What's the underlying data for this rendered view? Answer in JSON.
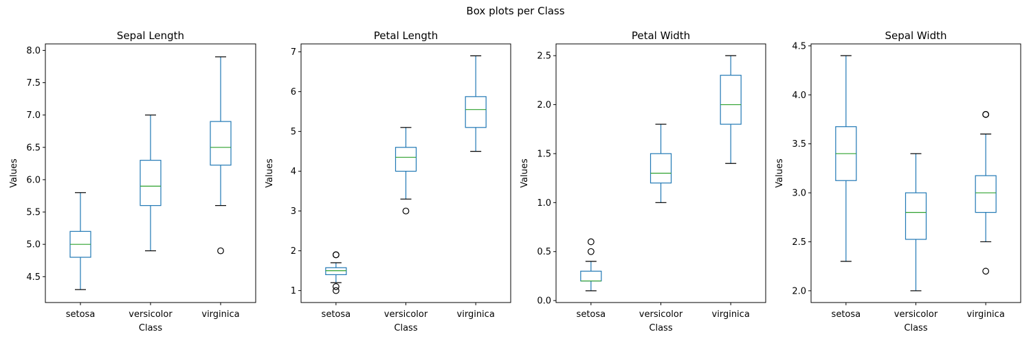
{
  "figure": {
    "suptitle": "Box plots per Class"
  },
  "colors": {
    "box": "#1f77b4",
    "median": "#2ca02c",
    "axis": "#000000",
    "outlier": "#000000"
  },
  "chart_data": [
    {
      "type": "box",
      "title": "Sepal Length",
      "xlabel": "Class",
      "ylabel": "Values",
      "categories": [
        "setosa",
        "versicolor",
        "virginica"
      ],
      "ylim": [
        4.1,
        8.1
      ],
      "yticks": [
        4.5,
        5.0,
        5.5,
        6.0,
        6.5,
        7.0,
        7.5,
        8.0
      ],
      "ytick_labels": [
        "4.5",
        "5.0",
        "5.5",
        "6.0",
        "6.5",
        "7.0",
        "7.5",
        "8.0"
      ],
      "boxes": [
        {
          "whisker_low": 4.3,
          "q1": 4.8,
          "median": 5.0,
          "q3": 5.2,
          "whisker_high": 5.8,
          "outliers": []
        },
        {
          "whisker_low": 4.9,
          "q1": 5.6,
          "median": 5.9,
          "q3": 6.3,
          "whisker_high": 7.0,
          "outliers": []
        },
        {
          "whisker_low": 5.6,
          "q1": 6.225,
          "median": 6.5,
          "q3": 6.9,
          "whisker_high": 7.9,
          "outliers": [
            4.9
          ]
        }
      ]
    },
    {
      "type": "box",
      "title": "Petal Length",
      "xlabel": "Class",
      "ylabel": "Values",
      "categories": [
        "setosa",
        "versicolor",
        "virginica"
      ],
      "ylim": [
        0.7,
        7.2
      ],
      "yticks": [
        1,
        2,
        3,
        4,
        5,
        6,
        7
      ],
      "ytick_labels": [
        "1",
        "2",
        "3",
        "4",
        "5",
        "6",
        "7"
      ],
      "boxes": [
        {
          "whisker_low": 1.2,
          "q1": 1.4,
          "median": 1.5,
          "q3": 1.575,
          "whisker_high": 1.7,
          "outliers": [
            1.0,
            1.1,
            1.9,
            1.9
          ]
        },
        {
          "whisker_low": 3.3,
          "q1": 4.0,
          "median": 4.35,
          "q3": 4.6,
          "whisker_high": 5.1,
          "outliers": [
            3.0
          ]
        },
        {
          "whisker_low": 4.5,
          "q1": 5.1,
          "median": 5.55,
          "q3": 5.875,
          "whisker_high": 6.9,
          "outliers": []
        }
      ]
    },
    {
      "type": "box",
      "title": "Petal Width",
      "xlabel": "Class",
      "ylabel": "Values",
      "categories": [
        "setosa",
        "versicolor",
        "virginica"
      ],
      "ylim": [
        -0.02,
        2.62
      ],
      "yticks": [
        0.0,
        0.5,
        1.0,
        1.5,
        2.0,
        2.5
      ],
      "ytick_labels": [
        "0.0",
        "0.5",
        "1.0",
        "1.5",
        "2.0",
        "2.5"
      ],
      "boxes": [
        {
          "whisker_low": 0.1,
          "q1": 0.2,
          "median": 0.2,
          "q3": 0.3,
          "whisker_high": 0.4,
          "outliers": [
            0.5,
            0.6
          ]
        },
        {
          "whisker_low": 1.0,
          "q1": 1.2,
          "median": 1.3,
          "q3": 1.5,
          "whisker_high": 1.8,
          "outliers": []
        },
        {
          "whisker_low": 1.4,
          "q1": 1.8,
          "median": 2.0,
          "q3": 2.3,
          "whisker_high": 2.5,
          "outliers": []
        }
      ]
    },
    {
      "type": "box",
      "title": "Sepal Width",
      "xlabel": "Class",
      "ylabel": "Values",
      "categories": [
        "setosa",
        "versicolor",
        "virginica"
      ],
      "ylim": [
        1.88,
        4.52
      ],
      "yticks": [
        2.0,
        2.5,
        3.0,
        3.5,
        4.0,
        4.5
      ],
      "ytick_labels": [
        "2.0",
        "2.5",
        "3.0",
        "3.5",
        "4.0",
        "4.5"
      ],
      "boxes": [
        {
          "whisker_low": 2.3,
          "q1": 3.125,
          "median": 3.4,
          "q3": 3.675,
          "whisker_high": 4.4,
          "outliers": []
        },
        {
          "whisker_low": 2.0,
          "q1": 2.525,
          "median": 2.8,
          "q3": 3.0,
          "whisker_high": 3.4,
          "outliers": []
        },
        {
          "whisker_low": 2.5,
          "q1": 2.8,
          "median": 3.0,
          "q3": 3.175,
          "whisker_high": 3.6,
          "outliers": [
            2.2,
            3.8,
            3.8
          ]
        }
      ]
    }
  ]
}
